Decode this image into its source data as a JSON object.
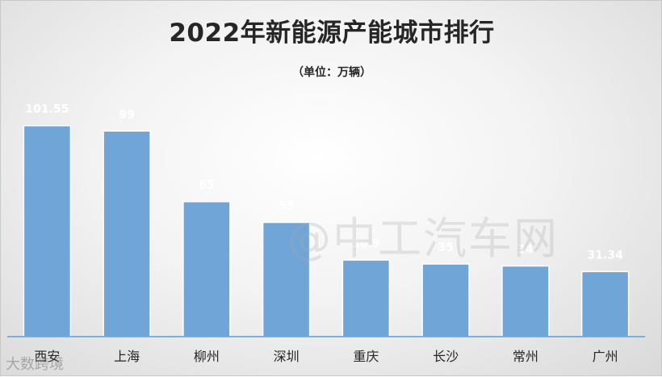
{
  "chart_data": {
    "type": "bar",
    "title": "2022年新能源产能城市排行",
    "subtitle": "（单位：万辆）",
    "categories": [
      "西安",
      "上海",
      "柳州",
      "深圳",
      "重庆",
      "长沙",
      "常州",
      "广州"
    ],
    "values": [
      101.55,
      99,
      65,
      55,
      36.9,
      35,
      34,
      31.34
    ],
    "value_labels": [
      "101.55",
      "99",
      "65",
      "55",
      "36.9",
      "35",
      "34",
      "31.34"
    ],
    "ylim": [
      0,
      110
    ],
    "grid": false,
    "legend": "none",
    "bar_color": "#6fa5d7",
    "label_color": "#ffffff",
    "axis_color": "#5b9bd5"
  },
  "watermark": "@中工汽车网",
  "logo_text": "大数跨境"
}
